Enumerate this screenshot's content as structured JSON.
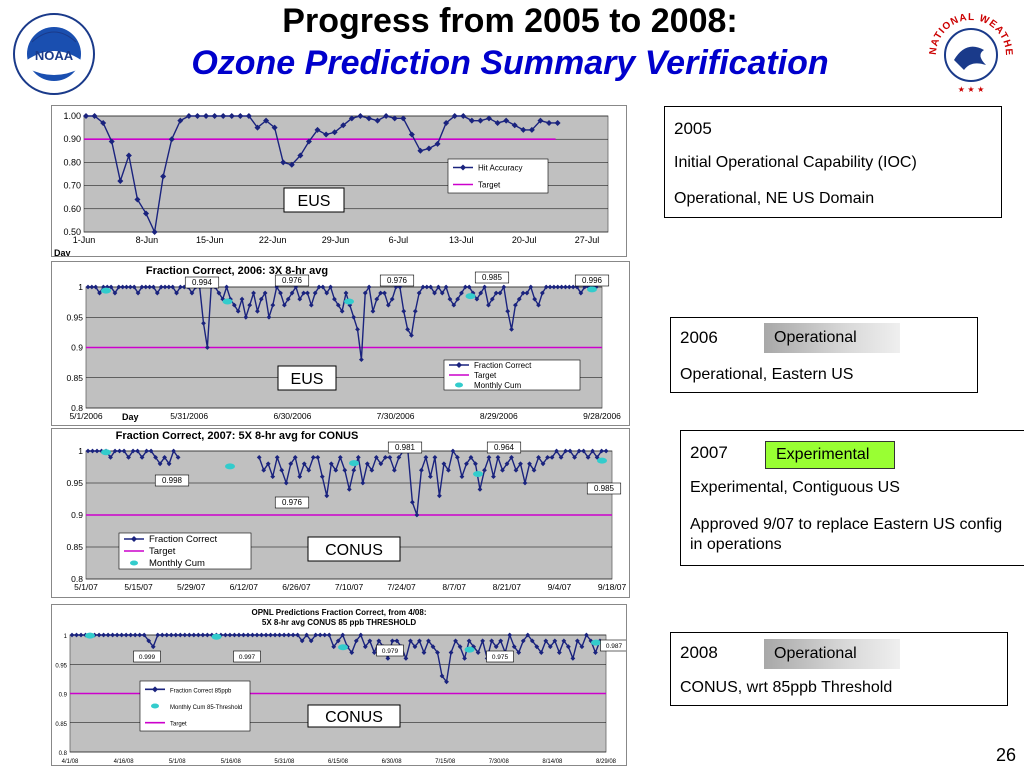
{
  "slide": {
    "title_line1": "Progress from 2005 to 2008:",
    "title_line2": "Ozone Prediction Summary Verification",
    "page_number": "26"
  },
  "logos": {
    "noaa_text": "NOAA",
    "nws_text": "NATIONAL WEATHER SERVICE"
  },
  "info": {
    "y2005": {
      "year": "2005",
      "line1": "Initial Operational Capability (IOC)",
      "line2": "Operational, NE US Domain"
    },
    "y2006": {
      "year": "2006",
      "tag": "Operational",
      "line1": "Operational, Eastern US"
    },
    "y2007": {
      "year": "2007",
      "tag": "Experimental",
      "line1": "Experimental, Contiguous US",
      "line2": "Approved 9/07 to replace Eastern US config in operations"
    },
    "y2008": {
      "year": "2008",
      "tag": "Operational",
      "line1": "CONUS, wrt  85ppb Threshold"
    }
  },
  "colors": {
    "series": "#1a237e",
    "target": "#cc00cc",
    "cum": "#33cccc",
    "plot_bg": "#c0c0c0"
  },
  "chart_data": [
    {
      "type": "line",
      "title": "",
      "region_label": "EUS",
      "xlabel": "Day",
      "x_ticks": [
        "1-Jun",
        "8-Jun",
        "15-Jun",
        "22-Jun",
        "29-Jun",
        "6-Jul",
        "13-Jul",
        "20-Jul",
        "27-Jul"
      ],
      "y_ticks": [
        "1.00",
        "0.90",
        "0.80",
        "0.70",
        "0.60",
        "0.50"
      ],
      "ylim": [
        0.5,
        1.0
      ],
      "legend": [
        "Hit Accuracy",
        "Target"
      ],
      "target": 0.9,
      "series": [
        {
          "name": "Hit Accuracy",
          "values": [
            1.0,
            1.0,
            0.97,
            0.89,
            0.72,
            0.83,
            0.64,
            0.58,
            0.5,
            0.74,
            0.9,
            0.98,
            1.0,
            1.0,
            1.0,
            1.0,
            1.0,
            1.0,
            1.0,
            1.0,
            0.95,
            0.98,
            0.95,
            0.8,
            0.79,
            0.83,
            0.89,
            0.94,
            0.92,
            0.93,
            0.96,
            0.99,
            1.0,
            0.99,
            0.98,
            1.0,
            0.99,
            0.99,
            0.92,
            0.85,
            0.86,
            0.88,
            0.97,
            1.0,
            1.0,
            0.98,
            0.98,
            0.99,
            0.97,
            0.98,
            0.96,
            0.94,
            0.94,
            0.98,
            0.97,
            0.97
          ]
        }
      ]
    },
    {
      "type": "line",
      "title": "Fraction Correct, 2006: 3X 8-hr avg",
      "region_label": "EUS",
      "xlabel": "Day",
      "x_ticks": [
        "5/1/2006",
        "5/31/2006",
        "6/30/2006",
        "7/30/2006",
        "8/29/2006",
        "9/28/2006"
      ],
      "y_ticks": [
        "1",
        "0.95",
        "0.9",
        "0.85",
        "0.8"
      ],
      "ylim": [
        0.8,
        1.0
      ],
      "legend": [
        "Fraction Correct",
        "Target",
        "Monthly Cum"
      ],
      "target": 0.9,
      "monthly_labels": [
        "0.994",
        "0.976",
        "0.976",
        "0.985",
        "0.996"
      ],
      "monthly_cum": [
        0.994,
        0.976,
        0.976,
        0.985,
        0.996
      ],
      "series": [
        {
          "name": "Fraction Correct",
          "values": [
            1,
            1,
            1,
            0.99,
            1,
            1,
            1,
            0.99,
            1,
            1,
            1,
            1,
            1,
            0.99,
            1,
            1,
            1,
            1,
            0.99,
            1,
            1,
            1,
            1,
            0.99,
            1,
            1,
            1,
            0.99,
            1,
            1,
            0.94,
            0.9,
            1,
            1,
            0.99,
            0.98,
            1,
            0.98,
            0.97,
            0.96,
            0.98,
            0.95,
            0.97,
            0.99,
            0.96,
            0.98,
            0.99,
            0.95,
            0.97,
            1,
            0.99,
            0.97,
            0.98,
            0.99,
            1,
            0.98,
            0.99,
            0.99,
            0.97,
            0.99,
            1,
            1,
            0.99,
            1,
            0.98,
            0.97,
            0.96,
            0.99,
            0.97,
            0.95,
            0.93,
            0.88,
            0.99,
            1,
            0.96,
            0.98,
            0.99,
            0.99,
            0.97,
            0.98,
            1,
            1,
            0.96,
            0.93,
            0.92,
            0.96,
            0.99,
            1,
            1,
            1,
            0.99,
            1,
            0.99,
            1,
            0.98,
            0.97,
            0.98,
            0.99,
            1,
            1,
            0.99,
            0.98,
            0.99,
            1,
            0.97,
            0.98,
            0.99,
            0.99,
            1,
            0.96,
            0.93,
            0.97,
            0.98,
            0.99,
            0.99,
            1,
            0.98,
            0.97,
            0.99,
            1,
            1,
            1,
            1,
            1,
            1,
            1,
            1,
            1,
            0.99,
            1,
            1,
            1,
            1
          ]
        }
      ]
    },
    {
      "type": "line",
      "title": "Fraction Correct, 2007: 5X 8-hr avg for CONUS",
      "region_label": "CONUS",
      "xlabel": "",
      "x_ticks": [
        "5/1/07",
        "5/15/07",
        "5/29/07",
        "6/12/07",
        "6/26/07",
        "7/10/07",
        "7/24/07",
        "8/7/07",
        "8/21/07",
        "9/4/07",
        "9/18/07"
      ],
      "y_ticks": [
        "1",
        "0.95",
        "0.9",
        "0.85",
        "0.8"
      ],
      "ylim": [
        0.8,
        1.0
      ],
      "legend": [
        "Fraction Correct",
        "Target",
        "Monthly Cum"
      ],
      "target": 0.9,
      "monthly_labels": [
        "0.998",
        "0.976",
        "0.981",
        "0.964",
        "0.985"
      ],
      "monthly_cum": [
        0.998,
        0.976,
        0.981,
        0.964,
        0.985
      ],
      "series": [
        {
          "name": "Fraction Correct",
          "values": [
            1,
            1,
            1,
            1,
            1,
            0.99,
            1,
            1,
            1,
            0.99,
            1,
            1,
            0.99,
            1,
            1,
            0.99,
            0.98,
            0.99,
            0.98,
            1,
            0.99,
            null,
            null,
            null,
            null,
            null,
            null,
            null,
            null,
            null,
            null,
            null,
            null,
            null,
            null,
            null,
            null,
            null,
            0.99,
            0.97,
            0.98,
            0.96,
            0.99,
            0.97,
            0.95,
            0.98,
            0.99,
            0.96,
            0.98,
            0.97,
            0.99,
            0.99,
            0.96,
            0.93,
            0.98,
            0.97,
            0.99,
            0.97,
            0.94,
            0.97,
            0.99,
            0.95,
            0.98,
            0.97,
            0.99,
            0.98,
            0.99,
            0.99,
            0.97,
            0.99,
            1,
            1,
            0.92,
            0.9,
            0.97,
            0.99,
            0.96,
            0.99,
            0.93,
            0.98,
            0.97,
            1,
            0.99,
            0.96,
            0.98,
            0.99,
            0.98,
            0.94,
            0.97,
            0.99,
            0.96,
            0.99,
            0.97,
            0.98,
            0.99,
            0.97,
            0.98,
            0.95,
            0.98,
            0.97,
            0.99,
            0.98,
            0.99,
            0.99,
            1,
            0.99,
            1,
            1,
            0.99,
            1,
            1,
            0.99,
            1,
            0.99,
            1,
            1
          ]
        }
      ]
    },
    {
      "type": "line",
      "title": "OPNL Predictions Fraction Correct, from 4/08:\n5X 8-hr avg CONUS  85  ppb THRESHOLD",
      "region_label": "CONUS",
      "xlabel": "",
      "x_ticks": [
        "4/1/08",
        "4/16/08",
        "5/1/08",
        "5/16/08",
        "5/31/08",
        "6/15/08",
        "6/30/08",
        "7/15/08",
        "7/30/08",
        "8/14/08",
        "8/29/08"
      ],
      "y_ticks": [
        "1",
        "0.95",
        "0.9",
        "0.85",
        "0.8"
      ],
      "ylim": [
        0.8,
        1.0
      ],
      "legend": [
        "Fraction Correct 85ppb",
        "Monthly Cum 85-Threshold",
        "Target"
      ],
      "target": 0.9,
      "monthly_labels": [
        "0.999",
        "0.997",
        "0.979",
        "0.975",
        "0.987"
      ],
      "monthly_cum": [
        0.999,
        0.997,
        0.979,
        0.975,
        0.987
      ],
      "series": [
        {
          "name": "Fraction Correct 85ppb",
          "values": [
            1,
            1,
            1,
            1,
            1,
            1,
            1,
            1,
            1,
            1,
            1,
            1,
            1,
            1,
            1,
            1,
            1,
            0.99,
            0.98,
            1,
            1,
            1,
            1,
            1,
            1,
            1,
            1,
            1,
            1,
            1,
            1,
            1,
            1,
            1,
            1,
            1,
            1,
            1,
            1,
            1,
            1,
            1,
            1,
            1,
            1,
            1,
            1,
            1,
            1,
            1,
            1,
            0.99,
            1,
            0.99,
            1,
            1,
            1,
            1,
            0.98,
            0.99,
            1,
            0.98,
            0.97,
            0.99,
            1,
            0.98,
            0.99,
            0.97,
            0.99,
            0.98,
            0.96,
            0.99,
            0.99,
            0.98,
            0.96,
            0.99,
            0.98,
            0.99,
            0.97,
            0.99,
            0.98,
            0.97,
            0.93,
            0.92,
            0.97,
            0.99,
            0.98,
            0.96,
            0.99,
            0.98,
            0.97,
            0.99,
            0.96,
            0.99,
            0.98,
            0.99,
            0.97,
            1,
            0.98,
            0.97,
            0.99,
            1,
            0.99,
            0.98,
            0.97,
            0.99,
            0.98,
            0.99,
            0.97,
            0.99,
            0.98,
            0.96,
            0.99,
            0.98,
            1,
            0.99,
            0.97,
            0.99
          ]
        }
      ]
    }
  ]
}
